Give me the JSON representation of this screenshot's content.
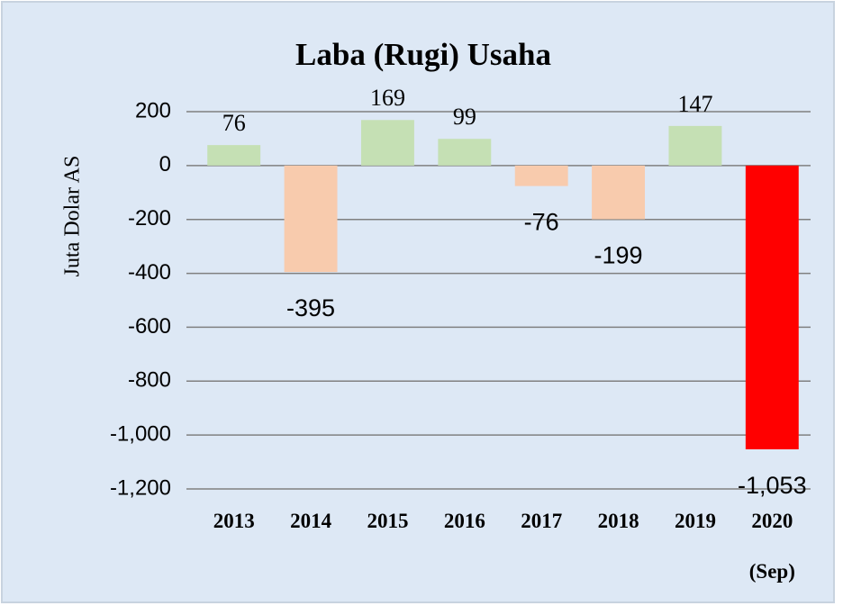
{
  "chart_data": {
    "type": "bar",
    "title": "Laba (Rugi) Usaha",
    "y_label": "Juta Dolar AS",
    "categories": [
      "2013",
      "2014",
      "2015",
      "2016",
      "2017",
      "2018",
      "2019",
      "2020\n(Sep)"
    ],
    "values": [
      76,
      -395,
      169,
      99,
      -76,
      -199,
      147,
      -1053
    ],
    "value_labels": [
      "76",
      "-395",
      "169",
      "99",
      "-76",
      "-199",
      "147",
      "-1,053"
    ],
    "colors": [
      "#c5e0b4",
      "#f8cbad",
      "#c5e0b4",
      "#c5e0b4",
      "#f8cbad",
      "#f8cbad",
      "#c5e0b4",
      "#ff0000"
    ],
    "ylim": [
      -1200,
      200
    ],
    "yticks": [
      200,
      0,
      -200,
      -400,
      -600,
      -800,
      {
        "value": -1000,
        "label": "-1,000"
      },
      {
        "value": -1200,
        "label": "-1,200"
      }
    ],
    "grid": true
  }
}
